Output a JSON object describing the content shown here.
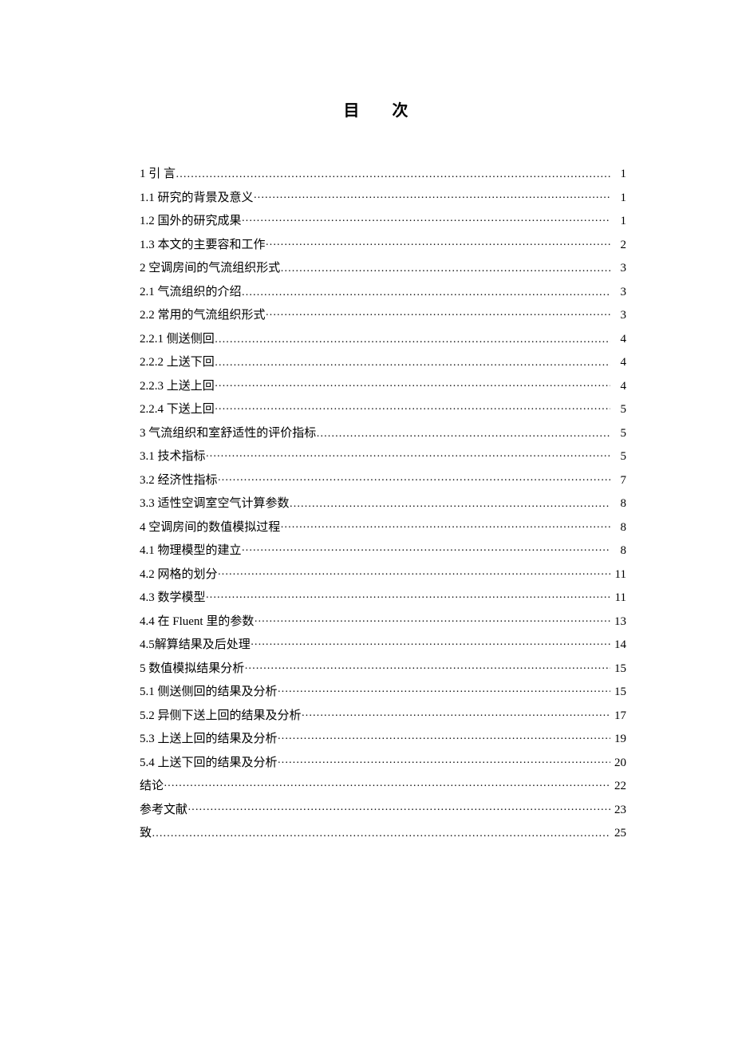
{
  "title": "目  次",
  "text_color": "#000000",
  "background_color": "#ffffff",
  "font_size_title": 20,
  "font_size_body": 15,
  "entries": [
    {
      "label": "1   引 言 ",
      "page": " 1",
      "dots_style": "spaced"
    },
    {
      "label": "1.1   研究的背景及意义",
      "page": "1",
      "dots_style": "tight"
    },
    {
      "label": "1.2   国外的研究成果",
      "page": "1",
      "dots_style": "tight"
    },
    {
      "label": "1.3 本文的主要容和工作",
      "page": " 2",
      "dots_style": "tight"
    },
    {
      "label": "2   空调房间的气流组织形式",
      "page": " 3",
      "dots_style": "spaced"
    },
    {
      "label": "2.1 气流组织的介绍  ",
      "page": "3",
      "dots_style": "spaced"
    },
    {
      "label": "2.2 常用的气流组织形式",
      "page": "3",
      "dots_style": "tight"
    },
    {
      "label": "2.2.1 侧送侧回",
      "page": "4",
      "dots_style": "spaced"
    },
    {
      "label": "2.2.2 上送下回",
      "page": "4",
      "dots_style": "spaced"
    },
    {
      "label": "2.2.3 上送上回",
      "page": "4",
      "dots_style": "tight"
    },
    {
      "label": "2.2.4 下送上回",
      "page": "5",
      "dots_style": "tight"
    },
    {
      "label": "3   气流组织和室舒适性的评价指标",
      "page": "5",
      "dots_style": "spaced"
    },
    {
      "label": "3.1 技术指标",
      "page": "5",
      "dots_style": "tight"
    },
    {
      "label": "3.2 经济性指标",
      "page": "7",
      "dots_style": "tight"
    },
    {
      "label": "3.3 适性空调室空气计算参数",
      "page": "8",
      "dots_style": "spaced"
    },
    {
      "label": "4   空调房间的数值模拟过程",
      "page": "8",
      "dots_style": "tight"
    },
    {
      "label": "4.1 物理模型的建立",
      "page": "8",
      "dots_style": "tight"
    },
    {
      "label": "4.2 网格的划分",
      "page": "11",
      "dots_style": "tight"
    },
    {
      "label": "4.3 数学模型",
      "page": "11",
      "dots_style": "tight"
    },
    {
      "label": "4.4 在 Fluent 里的参数",
      "page": " 13",
      "dots_style": "tight"
    },
    {
      "label": "4.5解算结果及后处理",
      "page": "14",
      "dots_style": "tight"
    },
    {
      "label": "5 数值模拟结果分析",
      "page": "15",
      "dots_style": "tight"
    },
    {
      "label": "5.1 侧送侧回的结果及分析",
      "page": "15",
      "dots_style": "tight"
    },
    {
      "label": "5.2 异侧下送上回的结果及分析",
      "page": " 17",
      "dots_style": "tight"
    },
    {
      "label": "5.3 上送上回的结果及分析",
      "page": "19",
      "dots_style": "tight"
    },
    {
      "label": "5.4 上送下回的结果及分析",
      "page": "20",
      "dots_style": "tight"
    },
    {
      "label": "结论 ",
      "page": "22",
      "dots_style": "tight"
    },
    {
      "label": "参考文献",
      "page": " 23",
      "dots_style": "tight"
    },
    {
      "label": "致",
      "page": "25",
      "dots_style": "spaced"
    }
  ]
}
